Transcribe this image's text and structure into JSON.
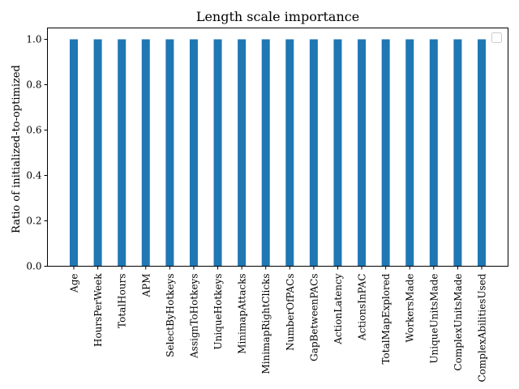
{
  "chart_data": {
    "type": "bar",
    "title": "Length scale importance",
    "xlabel": "",
    "ylabel": "Ratio of initialized-to-optimized",
    "ylim": [
      0.0,
      1.05
    ],
    "yticks": [
      0.0,
      0.2,
      0.4,
      0.6,
      0.8,
      1.0
    ],
    "ytick_labels": [
      "0.0",
      "0.2",
      "0.4",
      "0.6",
      "0.8",
      "1.0"
    ],
    "categories": [
      "Age",
      "HoursPerWeek",
      "TotalHours",
      "APM",
      "SelectByHotkeys",
      "AssignToHotkeys",
      "UniqueHotkeys",
      "MinimapAttacks",
      "MinimapRightClicks",
      "NumberOfPACs",
      "GapBetweenPACs",
      "ActionLatency",
      "ActionsInPAC",
      "TotalMapExplored",
      "WorkersMade",
      "UniqueUnitsMade",
      "ComplexUnitsMade",
      "ComplexAbilitiesUsed"
    ],
    "values": [
      1.0,
      1.0,
      1.0,
      1.0,
      1.0,
      1.0,
      1.0,
      1.0,
      1.0,
      1.0,
      1.0,
      1.0,
      1.0,
      1.0,
      1.0,
      1.0,
      1.0,
      1.0
    ],
    "bar_color": "#1f77b4",
    "legend": {
      "placement": "top-right",
      "entries": []
    },
    "grid": false
  }
}
